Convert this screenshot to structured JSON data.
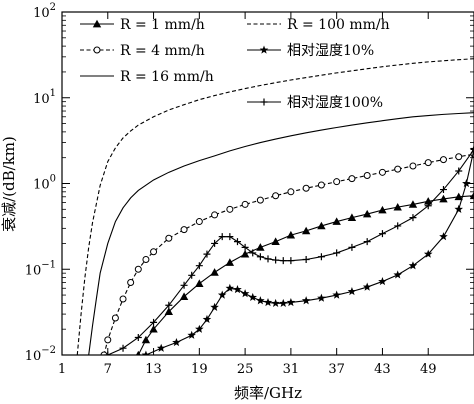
{
  "chart_data": {
    "type": "line",
    "xlabel": "频率/GHz",
    "ylabel": "衰减/(dB/km)",
    "xlim": [
      1,
      55
    ],
    "ylim": [
      0.01,
      100
    ],
    "y_scale": "log",
    "x_ticks": [
      1,
      7,
      13,
      19,
      25,
      31,
      37,
      43,
      49
    ],
    "y_ticks": [
      {
        "value": 0.01,
        "base": "10",
        "exp": "−2"
      },
      {
        "value": 0.1,
        "base": "10",
        "exp": "−1"
      },
      {
        "value": 1,
        "base": "10",
        "exp": "0"
      },
      {
        "value": 10,
        "base": "10",
        "exp": "1"
      },
      {
        "value": 100,
        "base": "10",
        "exp": "2"
      }
    ],
    "grid": false,
    "legend_position": "top-left",
    "series": [
      {
        "name": "R = 1 mm/h",
        "line": "solid",
        "marker": "triangle",
        "x": [
          11,
          12,
          13,
          15,
          17,
          19,
          21,
          23,
          25,
          27,
          29,
          31,
          33,
          35,
          37,
          39,
          41,
          43,
          45,
          47,
          49,
          51,
          53,
          55
        ],
        "y": [
          0.01,
          0.015,
          0.02,
          0.032,
          0.048,
          0.068,
          0.092,
          0.12,
          0.15,
          0.18,
          0.21,
          0.25,
          0.28,
          0.32,
          0.36,
          0.4,
          0.44,
          0.49,
          0.53,
          0.57,
          0.62,
          0.66,
          0.7,
          0.72
        ]
      },
      {
        "name": "R = 4 mm/h",
        "line": "dashed",
        "marker": "circle",
        "x": [
          6.5,
          7,
          8,
          9,
          10,
          11,
          12,
          13,
          15,
          17,
          19,
          21,
          23,
          25,
          27,
          29,
          31,
          33,
          35,
          37,
          39,
          41,
          43,
          45,
          47,
          49,
          51,
          53,
          55
        ],
        "y": [
          0.01,
          0.015,
          0.027,
          0.045,
          0.07,
          0.1,
          0.13,
          0.16,
          0.23,
          0.29,
          0.36,
          0.43,
          0.5,
          0.57,
          0.64,
          0.72,
          0.8,
          0.88,
          0.96,
          1.05,
          1.14,
          1.24,
          1.35,
          1.47,
          1.6,
          1.75,
          1.9,
          2.05,
          2.2
        ]
      },
      {
        "name": "R = 16 mm/h",
        "line": "solid",
        "marker": "none",
        "x": [
          4.5,
          5,
          5.5,
          6,
          7,
          8,
          9,
          10,
          11,
          13,
          15,
          17,
          19,
          21,
          23,
          25,
          27,
          29,
          31,
          33,
          35,
          37,
          39,
          41,
          43,
          45,
          47,
          49,
          51,
          53,
          55
        ],
        "y": [
          0.01,
          0.022,
          0.045,
          0.09,
          0.2,
          0.36,
          0.52,
          0.68,
          0.83,
          1.1,
          1.35,
          1.6,
          1.85,
          2.1,
          2.4,
          2.7,
          3.0,
          3.3,
          3.6,
          3.9,
          4.2,
          4.5,
          4.8,
          5.1,
          5.4,
          5.7,
          6.0,
          6.2,
          6.4,
          6.55,
          6.7
        ]
      },
      {
        "name": "R = 100 mm/h",
        "line": "dashed",
        "marker": "none",
        "x": [
          3,
          3.5,
          4,
          4.5,
          5,
          6,
          7,
          8,
          9,
          10,
          11,
          13,
          15,
          17,
          19,
          21,
          23,
          25,
          27,
          29,
          31,
          33,
          35,
          37,
          39,
          41,
          43,
          45,
          47,
          49,
          51,
          53,
          55
        ],
        "y": [
          0.01,
          0.03,
          0.08,
          0.18,
          0.35,
          0.95,
          1.8,
          2.6,
          3.4,
          4.1,
          4.8,
          6.0,
          7.2,
          8.3,
          9.5,
          10.6,
          11.7,
          12.8,
          13.9,
          15.0,
          16.1,
          17.2,
          18.3,
          19.5,
          20.6,
          21.8,
          23.0,
          24.1,
          25.2,
          26.2,
          27.0,
          27.8,
          28.5
        ]
      },
      {
        "name": "相对湿度10%",
        "line": "solid",
        "marker": "star",
        "x": [
          12,
          14,
          16,
          18,
          19,
          20,
          21,
          22,
          23,
          24,
          25,
          26,
          27,
          28,
          29,
          30,
          31,
          33,
          35,
          37,
          39,
          41,
          43,
          45,
          47,
          49,
          51,
          53,
          54,
          55
        ],
        "y": [
          0.01,
          0.012,
          0.014,
          0.017,
          0.02,
          0.026,
          0.036,
          0.05,
          0.06,
          0.058,
          0.052,
          0.047,
          0.043,
          0.041,
          0.04,
          0.04,
          0.041,
          0.043,
          0.046,
          0.05,
          0.055,
          0.062,
          0.072,
          0.086,
          0.11,
          0.15,
          0.24,
          0.5,
          1.0,
          2.5
        ]
      },
      {
        "name": "相对湿度100%",
        "line": "solid",
        "marker": "plus",
        "x": [
          7,
          9,
          11,
          13,
          15,
          17,
          18,
          19,
          20,
          21,
          22,
          23,
          24,
          25,
          26,
          27,
          28,
          29,
          30,
          31,
          33,
          35,
          37,
          39,
          41,
          43,
          45,
          47,
          49,
          51,
          53,
          55
        ],
        "y": [
          0.01,
          0.012,
          0.016,
          0.024,
          0.038,
          0.065,
          0.085,
          0.11,
          0.15,
          0.2,
          0.24,
          0.24,
          0.21,
          0.18,
          0.155,
          0.14,
          0.132,
          0.128,
          0.126,
          0.126,
          0.13,
          0.14,
          0.155,
          0.18,
          0.21,
          0.26,
          0.32,
          0.4,
          0.55,
          0.85,
          1.4,
          2.5
        ]
      }
    ],
    "legend": [
      {
        "series": 0,
        "label": "R = 1 mm/h"
      },
      {
        "series": 3,
        "label": "R = 100 mm/h"
      },
      {
        "series": 1,
        "label": "R = 4 mm/h"
      },
      {
        "series": 4,
        "label": "相对湿度10%"
      },
      {
        "series": 2,
        "label": "R = 16 mm/h"
      },
      {
        "series": 5,
        "label": "相对湿度100%"
      }
    ]
  }
}
